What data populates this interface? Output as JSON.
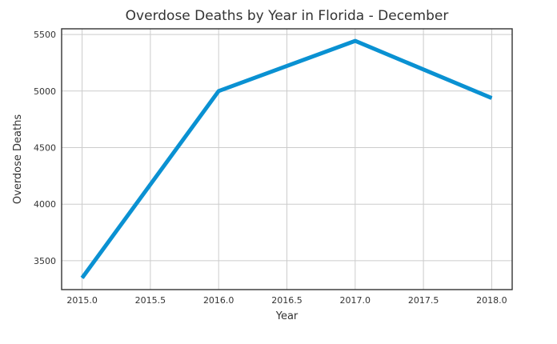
{
  "chart_data": {
    "type": "line",
    "title": "Overdose Deaths by Year in Florida - December",
    "xlabel": "Year",
    "ylabel": "Overdose Deaths",
    "x": [
      2015.0,
      2016.0,
      2017.0,
      2018.0
    ],
    "series": [
      {
        "values": [
          3348,
          5000,
          5443,
          4938
        ],
        "color": "#0a91d2"
      }
    ],
    "xlim": [
      2014.85,
      2018.15
    ],
    "ylim": [
      3245,
      5550
    ],
    "xticks": [
      "2015.0",
      "2015.5",
      "2016.0",
      "2016.5",
      "2017.0",
      "2017.5",
      "2018.0"
    ],
    "xtick_values": [
      2015.0,
      2015.5,
      2016.0,
      2016.5,
      2017.0,
      2017.5,
      2018.0
    ],
    "yticks": [
      "3500",
      "4000",
      "4500",
      "5000",
      "5500"
    ],
    "ytick_values": [
      3500,
      4000,
      4500,
      5000,
      5500
    ],
    "grid": true,
    "legend": "none"
  }
}
